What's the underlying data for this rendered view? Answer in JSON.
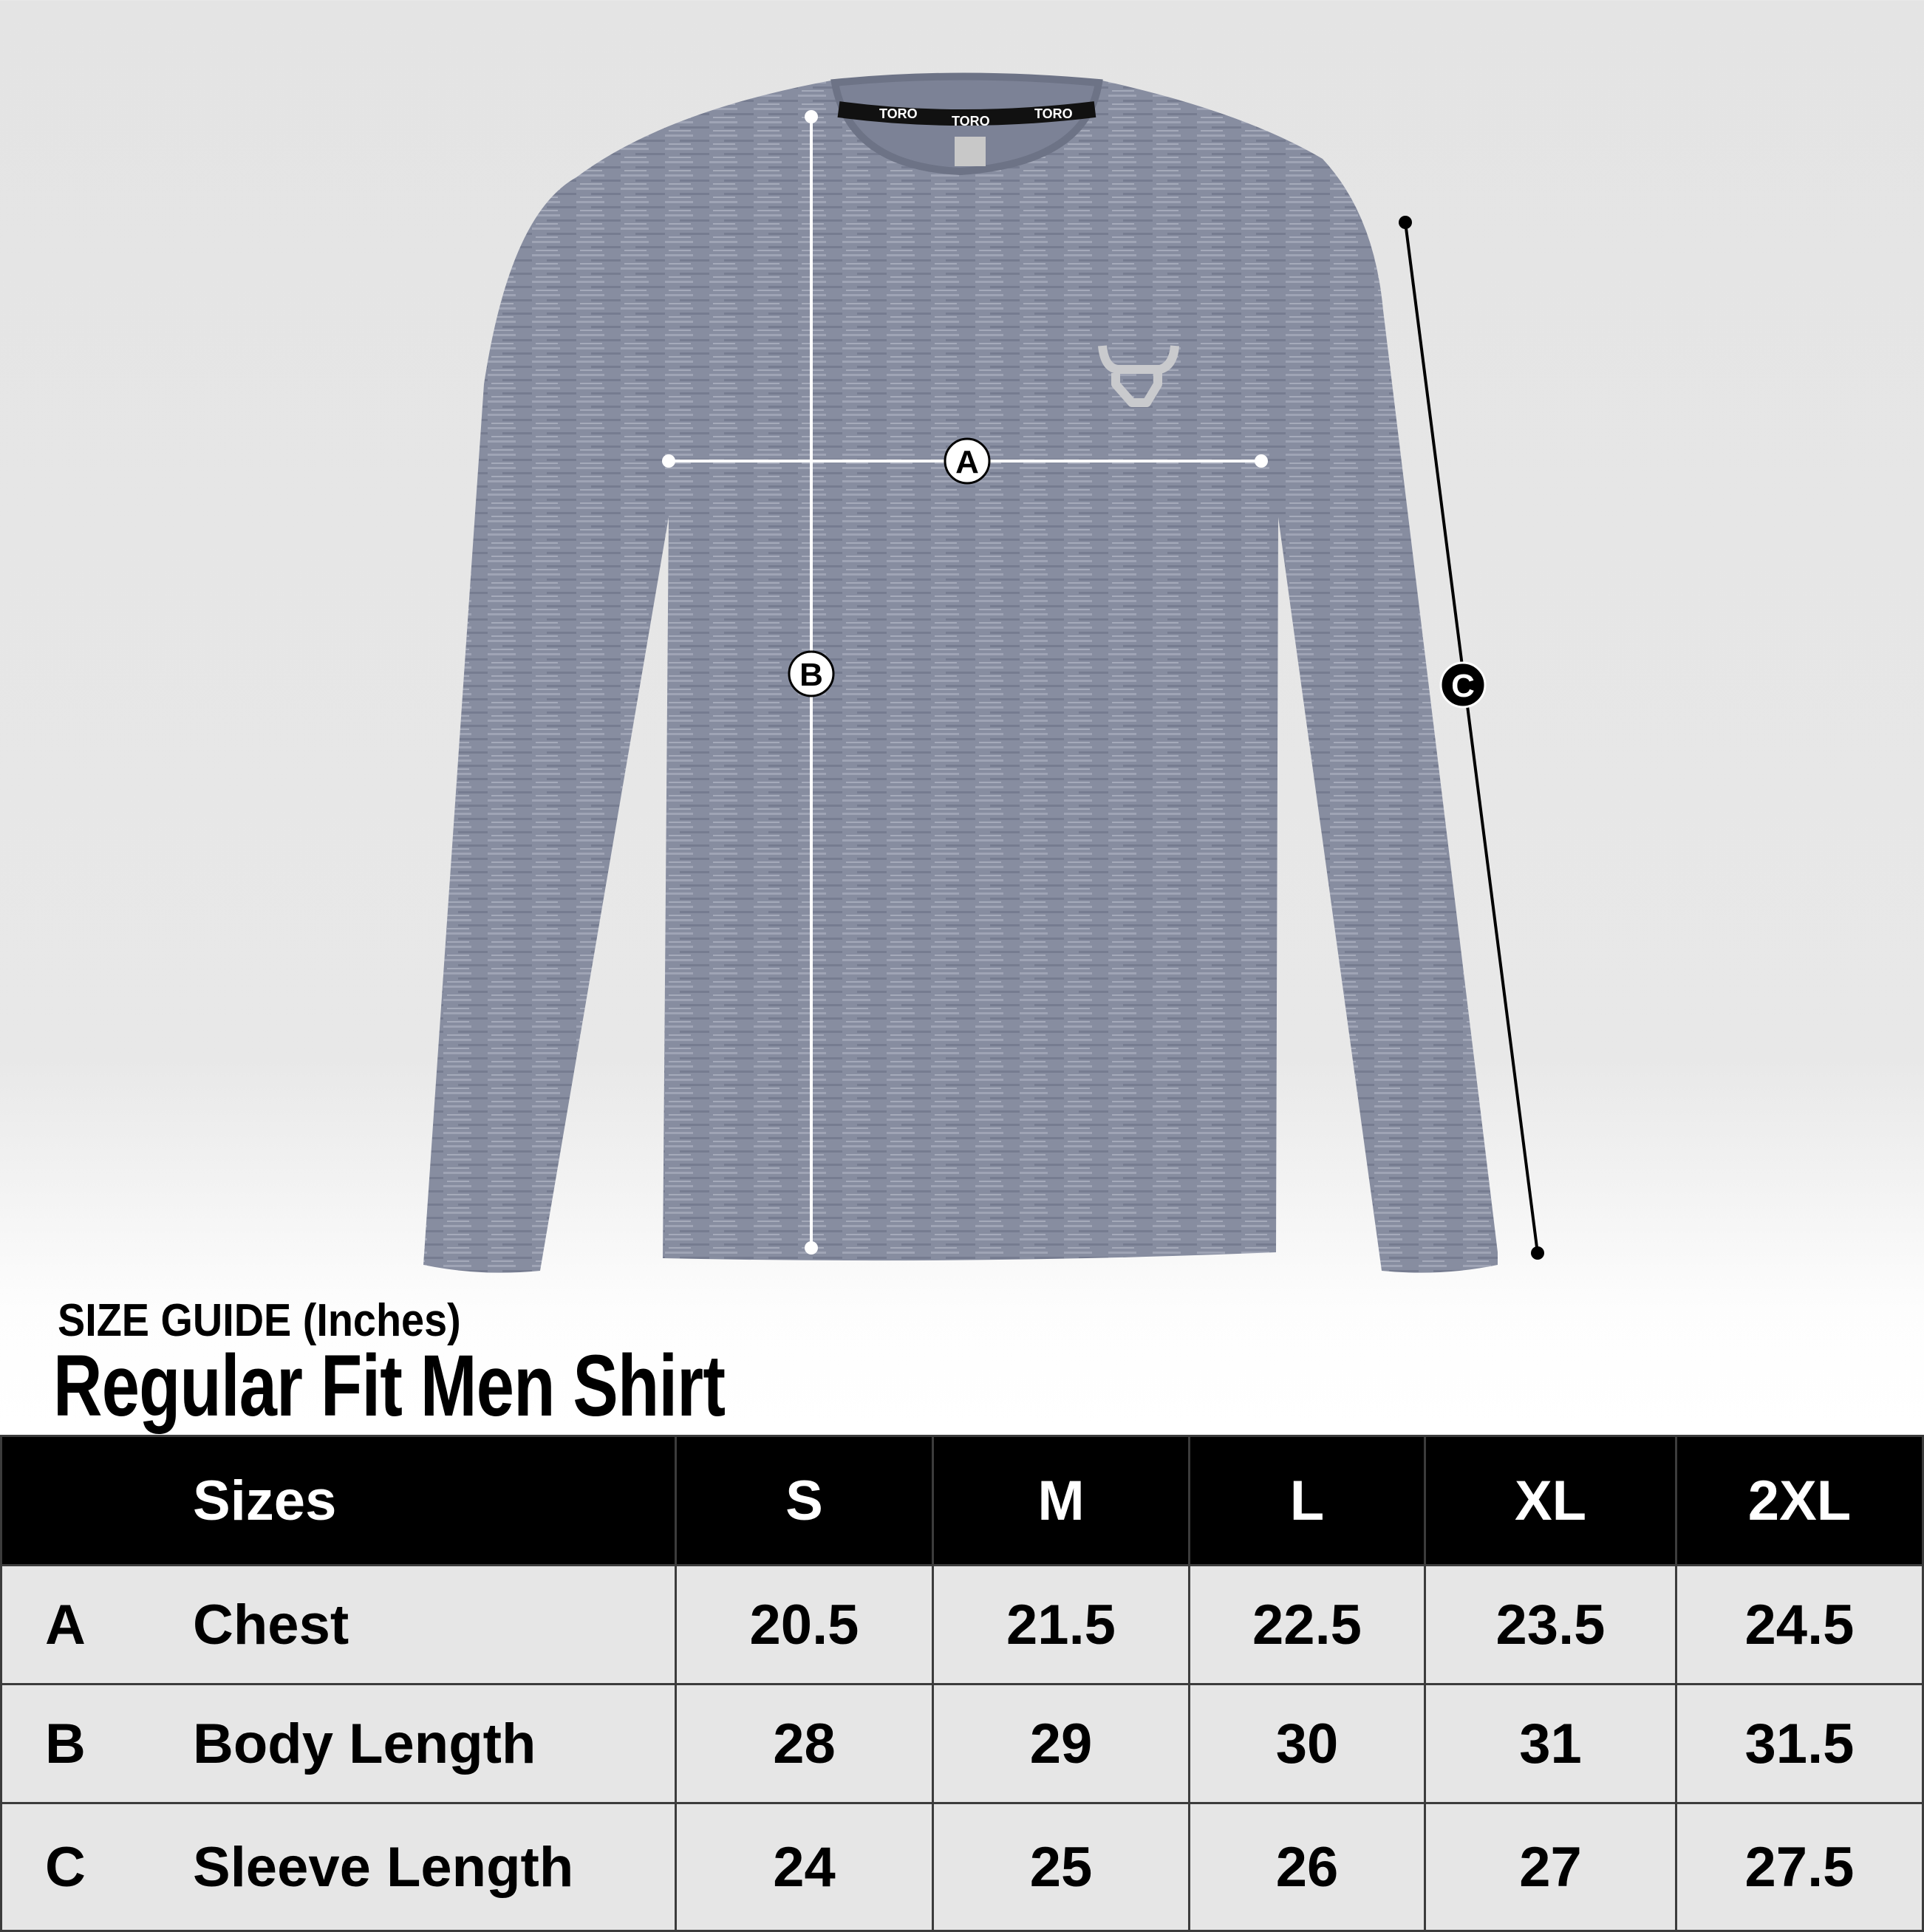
{
  "product": {
    "brand_collar_text": "TORO",
    "shirt_color": "#878da0",
    "logo": "bull-head-logo"
  },
  "measure_markers": {
    "a": "A",
    "b": "B",
    "c": "C"
  },
  "heading": {
    "subtitle": "SIZE GUIDE (Inches)",
    "title": "Regular Fit Men Shirt"
  },
  "table": {
    "header": {
      "label": "Sizes",
      "sizes": [
        "S",
        "M",
        "L",
        "XL",
        "2XL"
      ]
    },
    "rows": [
      {
        "letter": "A",
        "name": "Chest",
        "values": [
          "20.5",
          "21.5",
          "22.5",
          "23.5",
          "24.5"
        ]
      },
      {
        "letter": "B",
        "name": "Body Length",
        "values": [
          "28",
          "29",
          "30",
          "31",
          "31.5"
        ]
      },
      {
        "letter": "C",
        "name": "Sleeve Length",
        "values": [
          "24",
          "25",
          "26",
          "27",
          "27.5"
        ]
      }
    ]
  }
}
